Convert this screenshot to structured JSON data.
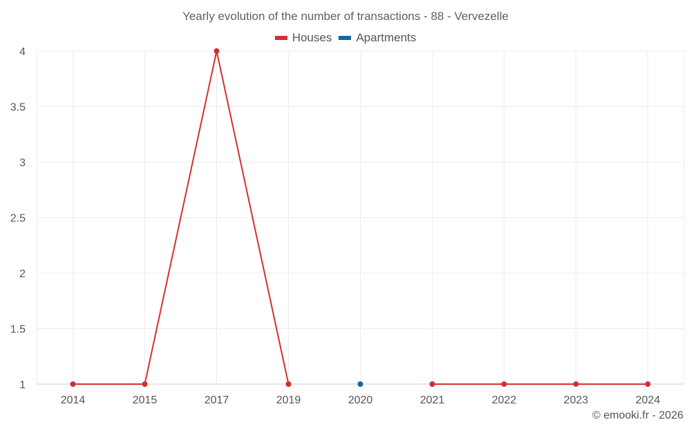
{
  "chart_data": {
    "type": "line",
    "title": "Yearly evolution of the number of transactions - 88 - Vervezelle",
    "categories": [
      "2014",
      "2015",
      "2017",
      "2019",
      "2020",
      "2021",
      "2022",
      "2023",
      "2024"
    ],
    "series": [
      {
        "name": "Houses",
        "color": "#d32f2f",
        "values": [
          1,
          1,
          4,
          1,
          null,
          1,
          1,
          1,
          1
        ]
      },
      {
        "name": "Apartments",
        "color": "#1565a0",
        "values": [
          null,
          null,
          null,
          null,
          1,
          null,
          null,
          null,
          null
        ]
      }
    ],
    "y_ticks": [
      "1",
      "1.5",
      "2",
      "2.5",
      "3",
      "3.5",
      "4"
    ],
    "ylim": [
      1,
      4
    ],
    "grid": true,
    "legend_position": "top-center",
    "credit": "© emooki.fr - 2026"
  }
}
